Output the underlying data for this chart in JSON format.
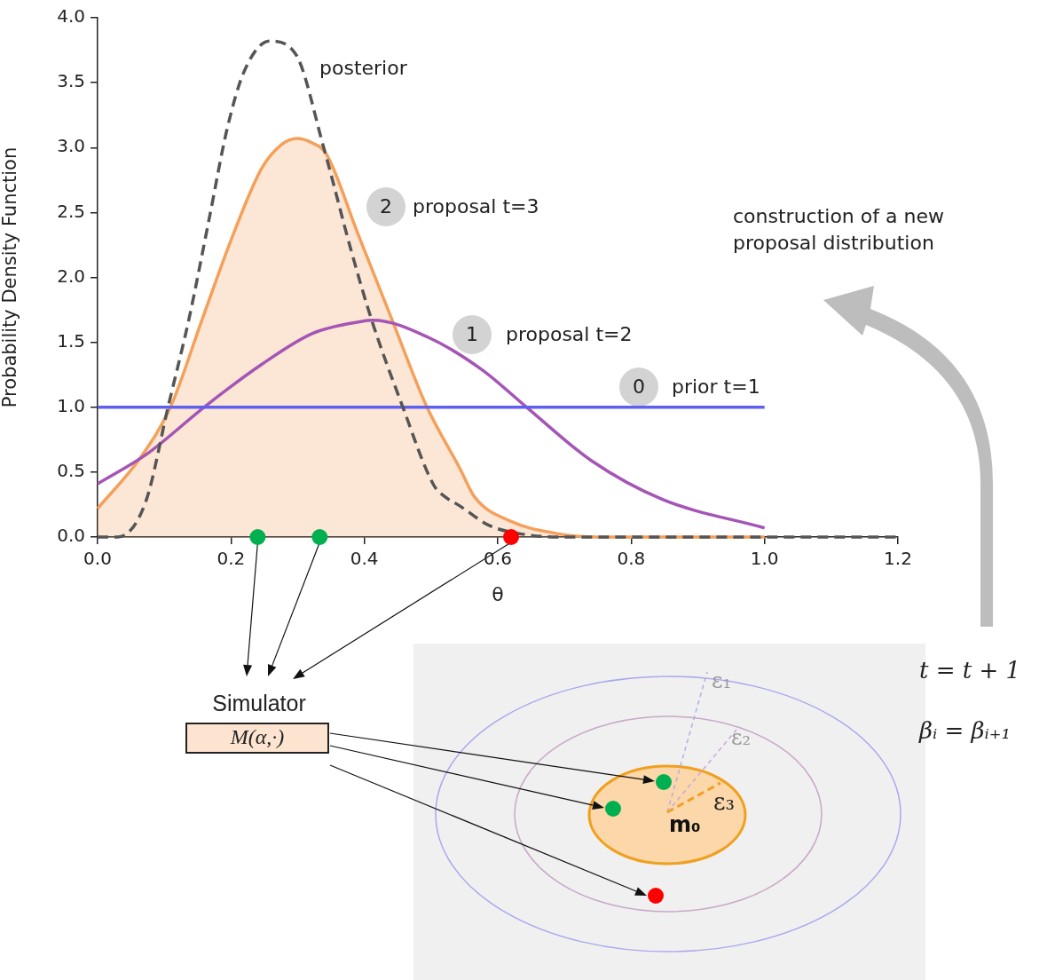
{
  "chart_data": {
    "type": "line",
    "xlabel": "θ",
    "ylabel": "Probability Density Function",
    "xlim": [
      0,
      1.2
    ],
    "xticks": [
      {
        "value": 0,
        "label": "0.0"
      },
      {
        "value": 0.2,
        "label": "0.2"
      },
      {
        "value": 0.4,
        "label": "0.4"
      },
      {
        "value": 0.6,
        "label": "0.6"
      },
      {
        "value": 0.8,
        "label": "0.8"
      },
      {
        "value": 1,
        "label": "1.0"
      },
      {
        "value": 1.2,
        "label": "1.2"
      }
    ],
    "ylim": [
      0,
      4
    ],
    "yticks": [
      {
        "value": 0,
        "label": "0.0"
      },
      {
        "value": 0.5,
        "label": "0.5"
      },
      {
        "value": 1,
        "label": "1.0"
      },
      {
        "value": 1.5,
        "label": "1.5"
      },
      {
        "value": 2,
        "label": "2.0"
      },
      {
        "value": 2.5,
        "label": "2.5"
      },
      {
        "value": 3,
        "label": "3.0"
      },
      {
        "value": 3.5,
        "label": "3.5"
      },
      {
        "value": 4,
        "label": "4.0"
      }
    ],
    "grid": false,
    "legend": false,
    "series": [
      {
        "type": "area",
        "color": "#f5a05a",
        "x": [
          0,
          0.064,
          0.11,
          0.157,
          0.204,
          0.246,
          0.275,
          0.299,
          0.32,
          0.343,
          0.39,
          0.441,
          0.493,
          0.543,
          0.565,
          0.62,
          0.685,
          0.75,
          1.0
        ],
        "values": [
          0.22,
          0.61,
          1.01,
          1.68,
          2.34,
          2.84,
          3.02,
          3.07,
          3.04,
          2.95,
          2.34,
          1.68,
          1.01,
          0.53,
          0.31,
          0.12,
          0.03,
          0,
          0
        ]
      },
      {
        "type": "line",
        "color": "#a455b5",
        "x": [
          0,
          0.074,
          0.162,
          0.246,
          0.323,
          0.395,
          0.413,
          0.495,
          0.576,
          0.641,
          0.74,
          0.847,
          1.0
        ],
        "values": [
          0.41,
          0.64,
          1.01,
          1.33,
          1.57,
          1.66,
          1.67,
          1.54,
          1.29,
          1.01,
          0.59,
          0.29,
          0.07
        ]
      },
      {
        "type": "line",
        "color": "#6060f0",
        "x": [
          0,
          1.0
        ],
        "values": [
          1,
          1
        ]
      },
      {
        "type": "line",
        "color": "#555555",
        "line_style": "dashed",
        "x": [
          0,
          0.03,
          0.072,
          0.106,
          0.137,
          0.168,
          0.194,
          0.22,
          0.258,
          0.297,
          0.339,
          0.38,
          0.411,
          0.457,
          0.504,
          0.521,
          0.543,
          0.587,
          0.64,
          0.7,
          1.2
        ],
        "values": [
          0,
          0,
          0.27,
          1.01,
          1.68,
          2.47,
          3.14,
          3.59,
          3.82,
          3.72,
          3.0,
          2.21,
          1.67,
          1.01,
          0.4,
          0.31,
          0.24,
          0.09,
          0.02,
          0,
          0
        ]
      },
      {
        "type": "scatter",
        "color": "#00b050",
        "x": [
          0.24,
          0.333
        ],
        "values": [
          0,
          0
        ]
      },
      {
        "type": "scatter",
        "color": "#ff0000",
        "x": [
          0.62
        ],
        "values": [
          0
        ]
      }
    ],
    "annotations": [
      "posterior",
      "2",
      "proposal t=3",
      "1",
      "proposal t=2",
      "0",
      "prior t=1",
      "construction of a new proposal distribution",
      "Simulator",
      "M(α,·)",
      "ε₁",
      "ε₂",
      "ε₃",
      "m₀",
      "t = t + 1",
      "βᵢ = βᵢ₊₁"
    ]
  }
}
